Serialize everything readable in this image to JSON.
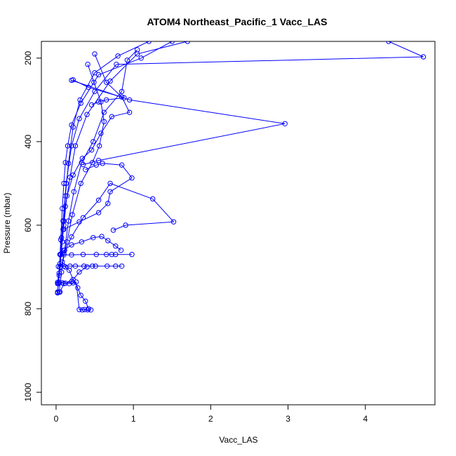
{
  "chart_data": {
    "type": "line",
    "title": "ATOM4 Northeast_Pacific_1 Vacc_LAS",
    "xlabel": "Vacc_LAS",
    "ylabel": "Pressure (mbar)",
    "xlim": [
      -0.19,
      4.9
    ],
    "ylim": [
      1030,
      160
    ],
    "y_reversed": true,
    "grid": false,
    "legend": "none",
    "x_ticks": [
      0,
      1,
      2,
      3,
      4
    ],
    "y_ticks": [
      200,
      400,
      600,
      800,
      1000
    ],
    "series_color": "#0000ff",
    "series": [
      {
        "x": [
          0.02,
          0.04,
          0.06,
          0.08,
          0.1,
          0.12,
          0.15,
          0.2,
          0.32,
          0.55,
          1.1,
          1.5
        ],
        "y": [
          760,
          715,
          635,
          560,
          500,
          450,
          410,
          360,
          308,
          240,
          200,
          160
        ]
      },
      {
        "x": [
          0.03,
          0.05,
          0.08,
          0.1,
          0.12,
          0.16,
          0.22,
          0.31,
          0.5,
          0.8,
          1.2
        ],
        "y": [
          740,
          700,
          640,
          590,
          530,
          452,
          365,
          300,
          235,
          195,
          160
        ]
      },
      {
        "x": [
          0.02,
          0.04,
          0.06,
          0.09,
          0.12,
          0.18,
          0.25,
          0.4,
          0.7,
          1.05,
          1.7
        ],
        "y": [
          762,
          720,
          670,
          610,
          555,
          485,
          410,
          335,
          255,
          190,
          160
        ]
      },
      {
        "x": [
          0.03,
          0.05,
          0.07,
          0.09,
          0.13,
          0.2,
          0.3,
          0.5,
          0.78,
          4.75,
          4.3
        ],
        "y": [
          740,
          700,
          630,
          590,
          500,
          410,
          345,
          280,
          215,
          197,
          160
        ]
      },
      {
        "x": [
          0.04,
          0.07,
          0.11,
          0.16,
          0.23,
          0.33,
          0.48,
          0.62,
          0.85,
          0.92,
          1.05
        ],
        "y": [
          760,
          712,
          660,
          590,
          520,
          450,
          400,
          330,
          280,
          205,
          180
        ]
      },
      {
        "x": [
          0.02,
          0.06,
          0.1,
          0.14,
          0.22,
          0.34,
          0.46,
          0.58,
          0.72,
          0.95,
          0.85,
          0.65,
          0.5
        ],
        "y": [
          740,
          670,
          600,
          530,
          480,
          440,
          420,
          380,
          340,
          330,
          293,
          258,
          190
        ]
      },
      {
        "x": [
          0.08,
          0.14,
          0.21,
          0.32,
          0.47,
          0.56,
          0.62,
          0.58,
          0.49,
          0.41
        ],
        "y": [
          688,
          640,
          575,
          500,
          450,
          410,
          352,
          305,
          258,
          215
        ]
      },
      {
        "x": [
          0.1,
          0.2,
          0.35,
          0.55,
          0.7,
          1.25,
          1.52,
          0.9,
          0.74
        ],
        "y": [
          667,
          628,
          582,
          540,
          500,
          537,
          592,
          600,
          612
        ]
      },
      {
        "x": [
          0.22,
          0.42,
          0.88,
          0.65,
          0.55,
          0.46
        ],
        "y": [
          252,
          270,
          295,
          300,
          305,
          312
        ]
      },
      {
        "x": [
          0.2,
          0.95,
          2.96,
          0.55,
          0.35
        ],
        "y": [
          253,
          300,
          357,
          445,
          455
        ]
      },
      {
        "x": [
          0.1,
          0.3,
          0.55,
          0.67,
          0.7,
          0.98,
          0.85,
          0.6,
          0.52,
          0.38
        ],
        "y": [
          610,
          592,
          570,
          548,
          520,
          487,
          456,
          452,
          456,
          467
        ]
      },
      {
        "x": [
          0.05,
          0.1,
          0.2,
          0.33,
          0.48,
          0.59,
          0.67,
          0.77,
          0.84
        ],
        "y": [
          670,
          660,
          647,
          640,
          630,
          627,
          637,
          650,
          660
        ]
      },
      {
        "x": [
          0.05,
          0.1,
          0.2,
          0.35,
          0.52,
          0.65,
          0.72,
          0.77,
          0.98
        ],
        "y": [
          670,
          671,
          671,
          670,
          670,
          670,
          670,
          670,
          670
        ]
      },
      {
        "x": [
          0.03,
          0.1,
          0.18,
          0.25,
          0.36,
          0.47,
          0.51,
          0.66,
          0.77,
          0.85
        ],
        "y": [
          699,
          698,
          698,
          698,
          698,
          698,
          698,
          698,
          698,
          698
        ]
      },
      {
        "x": [
          0.05,
          0.12,
          0.17,
          0.22,
          0.28,
          0.32,
          0.38,
          0.42
        ],
        "y": [
          692,
          700,
          708,
          730,
          750,
          768,
          782,
          800
        ]
      },
      {
        "x": [
          0.02,
          0.04,
          0.08,
          0.12,
          0.17,
          0.22,
          0.26,
          0.3,
          0.34,
          0.37,
          0.41,
          0.45
        ],
        "y": [
          737,
          737,
          738,
          739,
          740,
          738,
          736,
          802,
          803,
          802,
          803,
          803
        ]
      },
      {
        "x": [
          0.02,
          0.05,
          0.1,
          0.2,
          0.3,
          0.4
        ],
        "y": [
          762,
          760,
          740,
          735,
          712,
          700
        ]
      }
    ]
  }
}
